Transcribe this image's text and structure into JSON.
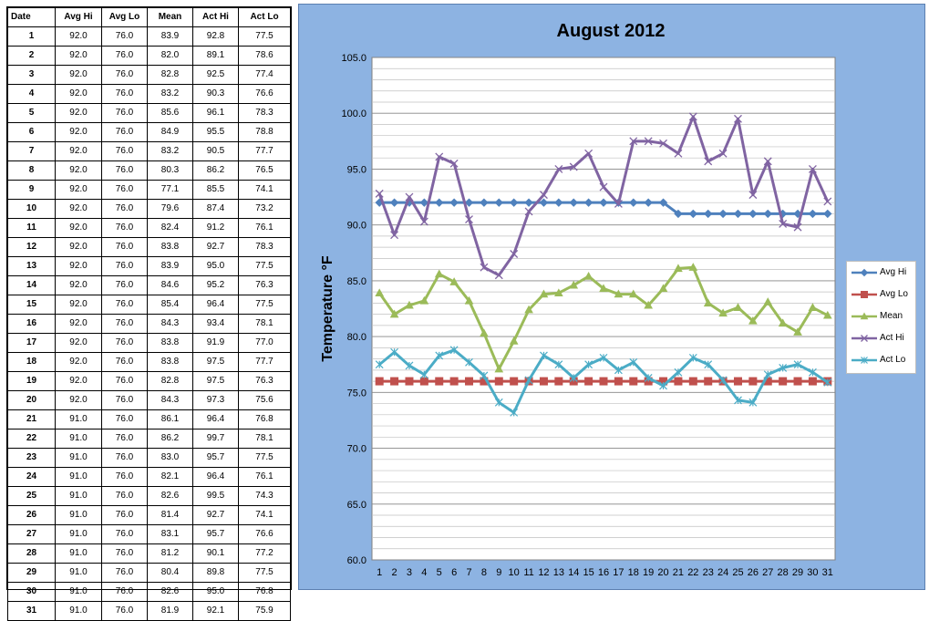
{
  "table": {
    "headers": [
      "Date",
      "Avg Hi",
      "Avg Lo",
      "Mean",
      "Act Hi",
      "Act Lo"
    ],
    "rows": [
      [
        "1",
        "92.0",
        "76.0",
        "83.9",
        "92.8",
        "77.5"
      ],
      [
        "2",
        "92.0",
        "76.0",
        "82.0",
        "89.1",
        "78.6"
      ],
      [
        "3",
        "92.0",
        "76.0",
        "82.8",
        "92.5",
        "77.4"
      ],
      [
        "4",
        "92.0",
        "76.0",
        "83.2",
        "90.3",
        "76.6"
      ],
      [
        "5",
        "92.0",
        "76.0",
        "85.6",
        "96.1",
        "78.3"
      ],
      [
        "6",
        "92.0",
        "76.0",
        "84.9",
        "95.5",
        "78.8"
      ],
      [
        "7",
        "92.0",
        "76.0",
        "83.2",
        "90.5",
        "77.7"
      ],
      [
        "8",
        "92.0",
        "76.0",
        "80.3",
        "86.2",
        "76.5"
      ],
      [
        "9",
        "92.0",
        "76.0",
        "77.1",
        "85.5",
        "74.1"
      ],
      [
        "10",
        "92.0",
        "76.0",
        "79.6",
        "87.4",
        "73.2"
      ],
      [
        "11",
        "92.0",
        "76.0",
        "82.4",
        "91.2",
        "76.1"
      ],
      [
        "12",
        "92.0",
        "76.0",
        "83.8",
        "92.7",
        "78.3"
      ],
      [
        "13",
        "92.0",
        "76.0",
        "83.9",
        "95.0",
        "77.5"
      ],
      [
        "14",
        "92.0",
        "76.0",
        "84.6",
        "95.2",
        "76.3"
      ],
      [
        "15",
        "92.0",
        "76.0",
        "85.4",
        "96.4",
        "77.5"
      ],
      [
        "16",
        "92.0",
        "76.0",
        "84.3",
        "93.4",
        "78.1"
      ],
      [
        "17",
        "92.0",
        "76.0",
        "83.8",
        "91.9",
        "77.0"
      ],
      [
        "18",
        "92.0",
        "76.0",
        "83.8",
        "97.5",
        "77.7"
      ],
      [
        "19",
        "92.0",
        "76.0",
        "82.8",
        "97.5",
        "76.3"
      ],
      [
        "20",
        "92.0",
        "76.0",
        "84.3",
        "97.3",
        "75.6"
      ],
      [
        "21",
        "91.0",
        "76.0",
        "86.1",
        "96.4",
        "76.8"
      ],
      [
        "22",
        "91.0",
        "76.0",
        "86.2",
        "99.7",
        "78.1"
      ],
      [
        "23",
        "91.0",
        "76.0",
        "83.0",
        "95.7",
        "77.5"
      ],
      [
        "24",
        "91.0",
        "76.0",
        "82.1",
        "96.4",
        "76.1"
      ],
      [
        "25",
        "91.0",
        "76.0",
        "82.6",
        "99.5",
        "74.3"
      ],
      [
        "26",
        "91.0",
        "76.0",
        "81.4",
        "92.7",
        "74.1"
      ],
      [
        "27",
        "91.0",
        "76.0",
        "83.1",
        "95.7",
        "76.6"
      ],
      [
        "28",
        "91.0",
        "76.0",
        "81.2",
        "90.1",
        "77.2"
      ],
      [
        "29",
        "91.0",
        "76.0",
        "80.4",
        "89.8",
        "77.5"
      ],
      [
        "30",
        "91.0",
        "76.0",
        "82.6",
        "95.0",
        "76.8"
      ],
      [
        "31",
        "91.0",
        "76.0",
        "81.9",
        "92.1",
        "75.9"
      ]
    ]
  },
  "chart_data": {
    "type": "line",
    "title": "August 2012",
    "xlabel": "",
    "ylabel": "Temperature °F",
    "ylim": [
      60,
      105
    ],
    "y_ticks": [
      "60.0",
      "65.0",
      "70.0",
      "75.0",
      "80.0",
      "85.0",
      "90.0",
      "95.0",
      "100.0",
      "105.0"
    ],
    "x": [
      "1",
      "2",
      "3",
      "4",
      "5",
      "6",
      "7",
      "8",
      "9",
      "10",
      "11",
      "12",
      "13",
      "14",
      "15",
      "16",
      "17",
      "18",
      "19",
      "20",
      "21",
      "22",
      "23",
      "24",
      "25",
      "26",
      "27",
      "28",
      "29",
      "30",
      "31"
    ],
    "grid": true,
    "legend_position": "right",
    "series": [
      {
        "name": "Avg Hi",
        "color": "#4f81bd",
        "marker": "diamond",
        "values": [
          92,
          92,
          92,
          92,
          92,
          92,
          92,
          92,
          92,
          92,
          92,
          92,
          92,
          92,
          92,
          92,
          92,
          92,
          92,
          92,
          91,
          91,
          91,
          91,
          91,
          91,
          91,
          91,
          91,
          91,
          91
        ]
      },
      {
        "name": "Avg Lo",
        "color": "#c0504d",
        "marker": "square",
        "values": [
          76,
          76,
          76,
          76,
          76,
          76,
          76,
          76,
          76,
          76,
          76,
          76,
          76,
          76,
          76,
          76,
          76,
          76,
          76,
          76,
          76,
          76,
          76,
          76,
          76,
          76,
          76,
          76,
          76,
          76,
          76
        ]
      },
      {
        "name": "Mean",
        "color": "#9bbb59",
        "marker": "triangle",
        "values": [
          83.9,
          82.0,
          82.8,
          83.2,
          85.6,
          84.9,
          83.2,
          80.3,
          77.1,
          79.6,
          82.4,
          83.8,
          83.9,
          84.6,
          85.4,
          84.3,
          83.8,
          83.8,
          82.8,
          84.3,
          86.1,
          86.2,
          83.0,
          82.1,
          82.6,
          81.4,
          83.1,
          81.2,
          80.4,
          82.6,
          81.9
        ]
      },
      {
        "name": "Act Hi",
        "color": "#8064a2",
        "marker": "x",
        "values": [
          92.8,
          89.1,
          92.5,
          90.3,
          96.1,
          95.5,
          90.5,
          86.2,
          85.5,
          87.4,
          91.2,
          92.7,
          95.0,
          95.2,
          96.4,
          93.4,
          91.9,
          97.5,
          97.5,
          97.3,
          96.4,
          99.7,
          95.7,
          96.4,
          99.5,
          92.7,
          95.7,
          90.1,
          89.8,
          95.0,
          92.1
        ]
      },
      {
        "name": "Act Lo",
        "color": "#4bacc6",
        "marker": "star",
        "values": [
          77.5,
          78.6,
          77.4,
          76.6,
          78.3,
          78.8,
          77.7,
          76.5,
          74.1,
          73.2,
          76.1,
          78.3,
          77.5,
          76.3,
          77.5,
          78.1,
          77.0,
          77.7,
          76.3,
          75.6,
          76.8,
          78.1,
          77.5,
          76.1,
          74.3,
          74.1,
          76.6,
          77.2,
          77.5,
          76.8,
          75.9
        ]
      }
    ]
  }
}
